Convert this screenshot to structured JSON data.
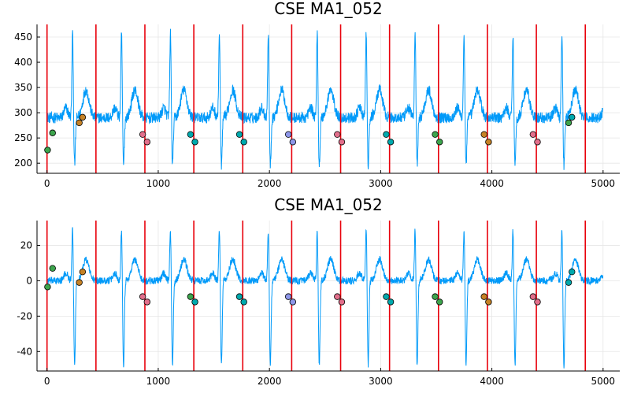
{
  "chart_data": [
    {
      "type": "line",
      "title": "CSE MA1_052",
      "xlabel": "",
      "ylabel": "",
      "xlim": [
        -90,
        5150
      ],
      "ylim": [
        180,
        475
      ],
      "xticks": [
        0,
        1000,
        2000,
        3000,
        4000,
        5000
      ],
      "yticks": [
        200,
        250,
        300,
        350,
        400,
        450
      ],
      "grid": true,
      "legend": "none",
      "colors": {
        "signal": "#009af9",
        "vline": "#e8000b"
      },
      "signal": {
        "n_samples": 5000,
        "baseline": 290,
        "noise": 11,
        "beat_period": 440,
        "r_offset": 20,
        "r_amplitude": 170,
        "s_amplitude": -95,
        "t_amplitude": 55
      },
      "vlines": [
        0,
        440,
        880,
        1320,
        1760,
        2200,
        2640,
        3080,
        3520,
        3960,
        4400,
        4840
      ],
      "markers": [
        {
          "x": 5,
          "y": 226,
          "color": "#3da44d"
        },
        {
          "x": 50,
          "y": 260,
          "color": "#3da44d"
        },
        {
          "x": 290,
          "y": 280,
          "color": "#c68225"
        },
        {
          "x": 320,
          "y": 291,
          "color": "#c68225"
        },
        {
          "x": 860,
          "y": 257,
          "color": "#e26f8b"
        },
        {
          "x": 900,
          "y": 242,
          "color": "#e26f8b"
        },
        {
          "x": 1290,
          "y": 257,
          "color": "#00a9ad"
        },
        {
          "x": 1330,
          "y": 242,
          "color": "#00a9ad"
        },
        {
          "x": 1730,
          "y": 257,
          "color": "#00a9ad"
        },
        {
          "x": 1770,
          "y": 242,
          "color": "#00a9ad"
        },
        {
          "x": 2170,
          "y": 257,
          "color": "#8e97e9"
        },
        {
          "x": 2210,
          "y": 242,
          "color": "#8e97e9"
        },
        {
          "x": 2610,
          "y": 257,
          "color": "#e26f8b"
        },
        {
          "x": 2650,
          "y": 242,
          "color": "#e26f8b"
        },
        {
          "x": 3050,
          "y": 257,
          "color": "#00a9ad"
        },
        {
          "x": 3090,
          "y": 242,
          "color": "#00a9ad"
        },
        {
          "x": 3490,
          "y": 257,
          "color": "#3da44d"
        },
        {
          "x": 3530,
          "y": 242,
          "color": "#3da44d"
        },
        {
          "x": 3930,
          "y": 257,
          "color": "#c68225"
        },
        {
          "x": 3970,
          "y": 242,
          "color": "#c68225"
        },
        {
          "x": 4370,
          "y": 257,
          "color": "#e26f8b"
        },
        {
          "x": 4410,
          "y": 242,
          "color": "#e26f8b"
        },
        {
          "x": 4690,
          "y": 280,
          "color": "#3da44d"
        },
        {
          "x": 4720,
          "y": 291,
          "color": "#00a9ad"
        }
      ]
    },
    {
      "type": "line",
      "title": "CSE MA1_052",
      "xlabel": "",
      "ylabel": "",
      "xlim": [
        -90,
        5150
      ],
      "ylim": [
        -51,
        34
      ],
      "xticks": [
        0,
        1000,
        2000,
        3000,
        4000,
        5000
      ],
      "yticks": [
        -40,
        -20,
        0,
        20
      ],
      "grid": true,
      "legend": "none",
      "colors": {
        "signal": "#009af9",
        "vline": "#e8000b"
      },
      "signal": {
        "n_samples": 5000,
        "baseline": 0,
        "noise": 2,
        "beat_period": 440,
        "r_offset": 20,
        "r_amplitude": 30,
        "s_amplitude": -48,
        "t_amplitude": 12
      },
      "vlines": [
        0,
        440,
        880,
        1320,
        1760,
        2200,
        2640,
        3080,
        3520,
        3960,
        4400,
        4840
      ],
      "markers": [
        {
          "x": 5,
          "y": -3.5,
          "color": "#3da44d"
        },
        {
          "x": 50,
          "y": 7,
          "color": "#3da44d"
        },
        {
          "x": 290,
          "y": -1,
          "color": "#c68225"
        },
        {
          "x": 320,
          "y": 5,
          "color": "#c68225"
        },
        {
          "x": 860,
          "y": -9,
          "color": "#e26f8b"
        },
        {
          "x": 900,
          "y": -12,
          "color": "#e26f8b"
        },
        {
          "x": 1290,
          "y": -9,
          "color": "#3da44d"
        },
        {
          "x": 1330,
          "y": -12,
          "color": "#00a9ad"
        },
        {
          "x": 1730,
          "y": -9,
          "color": "#00a9ad"
        },
        {
          "x": 1770,
          "y": -12,
          "color": "#00a9ad"
        },
        {
          "x": 2170,
          "y": -9,
          "color": "#8e97e9"
        },
        {
          "x": 2210,
          "y": -12,
          "color": "#8e97e9"
        },
        {
          "x": 2610,
          "y": -9,
          "color": "#e26f8b"
        },
        {
          "x": 2650,
          "y": -12,
          "color": "#e26f8b"
        },
        {
          "x": 3050,
          "y": -9,
          "color": "#00a9ad"
        },
        {
          "x": 3090,
          "y": -12,
          "color": "#00a9ad"
        },
        {
          "x": 3490,
          "y": -9,
          "color": "#3da44d"
        },
        {
          "x": 3530,
          "y": -12,
          "color": "#3da44d"
        },
        {
          "x": 3930,
          "y": -9,
          "color": "#c68225"
        },
        {
          "x": 3970,
          "y": -12,
          "color": "#c68225"
        },
        {
          "x": 4370,
          "y": -9,
          "color": "#e26f8b"
        },
        {
          "x": 4410,
          "y": -12,
          "color": "#e26f8b"
        },
        {
          "x": 4690,
          "y": -1,
          "color": "#00a9ad"
        },
        {
          "x": 4720,
          "y": 5,
          "color": "#00a9ad"
        }
      ]
    }
  ]
}
